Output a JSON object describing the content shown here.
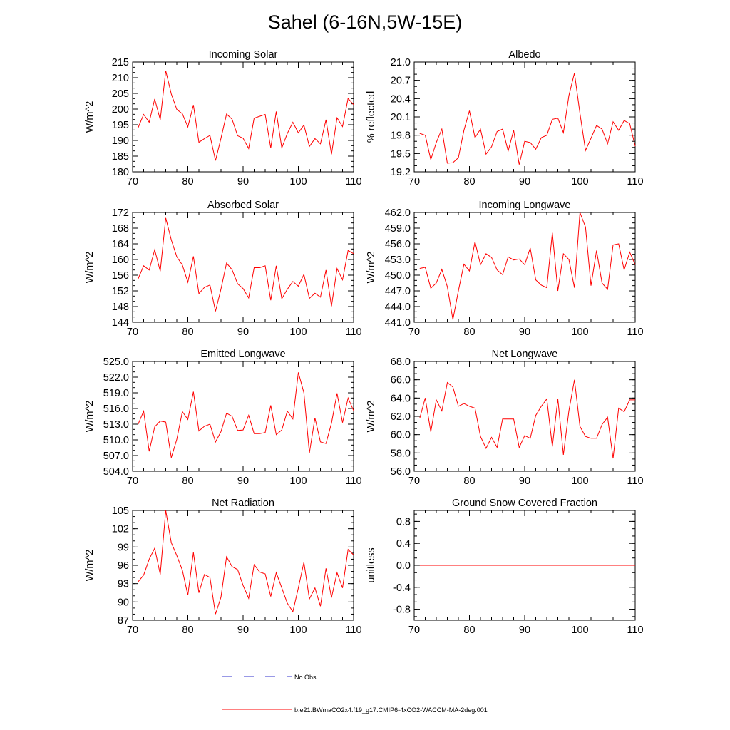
{
  "figure_title": "Sahel (6-16N,5W-15E)",
  "legend": {
    "items": [
      {
        "label": "No Obs",
        "color": "#3333cc",
        "style": "dashed"
      },
      {
        "label": "b.e21.BWmaCO2x4.f19_g17.CMIP6-4xCO2-WACCM-MA-2deg.001",
        "color": "#ff0000",
        "style": "solid"
      }
    ]
  },
  "chart_data": [
    {
      "type": "line",
      "title": "Incoming Solar",
      "ylabel": "W/m^2",
      "xlim": [
        70,
        110
      ],
      "ylim": [
        180,
        215
      ],
      "xticks": [
        "70",
        "80",
        "90",
        "100",
        "110"
      ],
      "yticks": [
        "180",
        "185",
        "190",
        "195",
        "200",
        "205",
        "210",
        "215"
      ],
      "x": [
        71,
        72,
        73,
        74,
        75,
        76,
        77,
        78,
        79,
        80,
        81,
        82,
        83,
        84,
        85,
        86,
        87,
        88,
        89,
        90,
        91,
        92,
        93,
        94,
        95,
        96,
        97,
        98,
        99,
        100,
        101,
        102,
        103,
        104,
        105,
        106,
        107,
        108,
        109,
        110
      ],
      "series": [
        {
          "color": "#ff0000",
          "values": [
            194.1,
            198.3,
            195.8,
            203.2,
            196.6,
            212.2,
            204.8,
            199.9,
            198.5,
            194.3,
            201.3,
            189.4,
            190.6,
            191.6,
            183.6,
            190.7,
            198.4,
            196.8,
            191.5,
            190.7,
            187.4,
            197.1,
            197.7,
            198.3,
            187.6,
            199.2,
            187.6,
            192.2,
            195.8,
            192.4,
            194.9,
            188.1,
            190.6,
            188.9,
            196.6,
            185.6,
            197.2,
            194.4,
            203.4,
            201.4
          ]
        }
      ]
    },
    {
      "type": "line",
      "title": "Albedo",
      "ylabel": "% reflected",
      "xlim": [
        70,
        110
      ],
      "ylim": [
        19.2,
        21.0
      ],
      "xticks": [
        "70",
        "80",
        "90",
        "100",
        "110"
      ],
      "yticks": [
        "19.2",
        "19.5",
        "19.8",
        "20.1",
        "20.4",
        "20.7",
        "21.0"
      ],
      "x": [
        71,
        72,
        73,
        74,
        75,
        76,
        77,
        78,
        79,
        80,
        81,
        82,
        83,
        84,
        85,
        86,
        87,
        88,
        89,
        90,
        91,
        92,
        93,
        94,
        95,
        96,
        97,
        98,
        99,
        100,
        101,
        102,
        103,
        104,
        105,
        106,
        107,
        108,
        109,
        110
      ],
      "series": [
        {
          "color": "#ff0000",
          "values": [
            19.83,
            19.8,
            19.4,
            19.68,
            19.9,
            19.34,
            19.35,
            19.43,
            19.88,
            20.2,
            19.76,
            19.9,
            19.49,
            19.61,
            19.86,
            19.9,
            19.54,
            19.88,
            19.32,
            19.7,
            19.68,
            19.57,
            19.76,
            19.8,
            20.06,
            20.08,
            19.84,
            20.45,
            20.82,
            20.16,
            19.55,
            19.75,
            19.96,
            19.9,
            19.66,
            20.02,
            19.88,
            20.04,
            19.99,
            19.62
          ]
        }
      ]
    },
    {
      "type": "line",
      "title": "Absorbed Solar",
      "ylabel": "W/m^2",
      "xlim": [
        70,
        110
      ],
      "ylim": [
        144,
        172
      ],
      "xticks": [
        "70",
        "80",
        "90",
        "100",
        "110"
      ],
      "yticks": [
        "144",
        "148",
        "152",
        "156",
        "160",
        "164",
        "168",
        "172"
      ],
      "x": [
        71,
        72,
        73,
        74,
        75,
        76,
        77,
        78,
        79,
        80,
        81,
        82,
        83,
        84,
        85,
        86,
        87,
        88,
        89,
        90,
        91,
        92,
        93,
        94,
        95,
        96,
        97,
        98,
        99,
        100,
        101,
        102,
        103,
        104,
        105,
        106,
        107,
        108,
        109,
        110
      ],
      "series": [
        {
          "color": "#ff0000",
          "values": [
            155.1,
            158.4,
            157.3,
            162.5,
            157.0,
            170.6,
            165.0,
            160.7,
            158.6,
            154.2,
            160.8,
            151.3,
            152.9,
            153.5,
            146.8,
            152.5,
            159.1,
            157.4,
            153.8,
            152.6,
            150.2,
            157.9,
            157.9,
            158.4,
            149.6,
            158.4,
            150.0,
            152.4,
            154.4,
            153.2,
            156.2,
            150.1,
            151.4,
            150.4,
            157.3,
            148.1,
            157.7,
            154.8,
            162.3,
            161.5
          ]
        }
      ]
    },
    {
      "type": "line",
      "title": "Incoming Longwave",
      "ylabel": "W/m^2",
      "xlim": [
        70,
        110
      ],
      "ylim": [
        441.0,
        462.0
      ],
      "xticks": [
        "70",
        "80",
        "90",
        "100",
        "110"
      ],
      "yticks": [
        "441.0",
        "444.0",
        "447.0",
        "450.0",
        "453.0",
        "456.0",
        "459.0",
        "462.0"
      ],
      "x": [
        71,
        72,
        73,
        74,
        75,
        76,
        77,
        78,
        79,
        80,
        81,
        82,
        83,
        84,
        85,
        86,
        87,
        88,
        89,
        90,
        91,
        92,
        93,
        94,
        95,
        96,
        97,
        98,
        99,
        100,
        101,
        102,
        103,
        104,
        105,
        106,
        107,
        108,
        109,
        110
      ],
      "series": [
        {
          "color": "#ff0000",
          "values": [
            451.3,
            451.5,
            447.5,
            448.5,
            451.1,
            447.8,
            441.5,
            447.0,
            452.1,
            450.8,
            456.4,
            452.0,
            454.1,
            453.4,
            451.0,
            450.1,
            453.5,
            452.9,
            453.1,
            452.0,
            455.2,
            449.1,
            448.1,
            447.6,
            458.1,
            447.0,
            454.1,
            453.0,
            447.6,
            462.0,
            459.2,
            448.0,
            454.7,
            448.5,
            447.3,
            455.8,
            456.0,
            451.0,
            454.4,
            452.0
          ]
        }
      ]
    },
    {
      "type": "line",
      "title": "Emitted Longwave",
      "ylabel": "W/m^2",
      "xlim": [
        70,
        110
      ],
      "ylim": [
        504.0,
        525.0
      ],
      "xticks": [
        "70",
        "80",
        "90",
        "100",
        "110"
      ],
      "yticks": [
        "504.0",
        "507.0",
        "510.0",
        "513.0",
        "516.0",
        "519.0",
        "522.0",
        "525.0"
      ],
      "x": [
        71,
        72,
        73,
        74,
        75,
        76,
        77,
        78,
        79,
        80,
        81,
        82,
        83,
        84,
        85,
        86,
        87,
        88,
        89,
        90,
        91,
        92,
        93,
        94,
        95,
        96,
        97,
        98,
        99,
        100,
        101,
        102,
        103,
        104,
        105,
        106,
        107,
        108,
        109,
        110
      ],
      "series": [
        {
          "color": "#ff0000",
          "values": [
            513.0,
            515.5,
            507.8,
            512.5,
            513.6,
            513.4,
            506.6,
            510.1,
            515.4,
            513.9,
            519.2,
            511.7,
            512.6,
            513.0,
            509.6,
            511.6,
            515.1,
            514.5,
            511.8,
            511.9,
            514.7,
            511.2,
            511.2,
            511.4,
            516.6,
            511.0,
            511.9,
            515.5,
            514.0,
            522.9,
            519.0,
            507.5,
            514.2,
            509.6,
            509.3,
            513.2,
            518.9,
            513.3,
            518.0,
            515.6
          ]
        }
      ]
    },
    {
      "type": "line",
      "title": "Net Longwave",
      "ylabel": "W/m^2",
      "xlim": [
        70,
        110
      ],
      "ylim": [
        56.0,
        68.0
      ],
      "xticks": [
        "70",
        "80",
        "90",
        "100",
        "110"
      ],
      "yticks": [
        "56.0",
        "58.0",
        "60.0",
        "62.0",
        "64.0",
        "66.0",
        "68.0"
      ],
      "x": [
        71,
        72,
        73,
        74,
        75,
        76,
        77,
        78,
        79,
        80,
        81,
        82,
        83,
        84,
        85,
        86,
        87,
        88,
        89,
        90,
        91,
        92,
        93,
        94,
        95,
        96,
        97,
        98,
        99,
        100,
        101,
        102,
        103,
        104,
        105,
        106,
        107,
        108,
        109,
        110
      ],
      "series": [
        {
          "color": "#ff0000",
          "values": [
            61.8,
            64.0,
            60.3,
            63.8,
            62.6,
            65.7,
            65.2,
            63.1,
            63.4,
            63.1,
            62.9,
            59.8,
            58.5,
            59.7,
            58.6,
            61.7,
            61.7,
            61.7,
            58.6,
            59.9,
            59.6,
            62.1,
            63.1,
            63.9,
            58.7,
            63.9,
            57.8,
            62.6,
            66.0,
            60.9,
            59.8,
            59.6,
            59.6,
            61.1,
            61.9,
            57.4,
            62.9,
            62.5,
            63.8,
            63.8
          ]
        }
      ]
    },
    {
      "type": "line",
      "title": "Net Radiation",
      "ylabel": "W/m^2",
      "xlim": [
        70,
        110
      ],
      "ylim": [
        87,
        105
      ],
      "xticks": [
        "70",
        "80",
        "90",
        "100",
        "110"
      ],
      "yticks": [
        "87",
        "90",
        "93",
        "96",
        "99",
        "102",
        "105"
      ],
      "x": [
        71,
        72,
        73,
        74,
        75,
        76,
        77,
        78,
        79,
        80,
        81,
        82,
        83,
        84,
        85,
        86,
        87,
        88,
        89,
        90,
        91,
        92,
        93,
        94,
        95,
        96,
        97,
        98,
        99,
        100,
        101,
        102,
        103,
        104,
        105,
        106,
        107,
        108,
        109,
        110
      ],
      "series": [
        {
          "color": "#ff0000",
          "values": [
            93.3,
            94.4,
            97.0,
            98.8,
            94.5,
            105.0,
            99.7,
            97.6,
            95.2,
            91.1,
            98.1,
            91.5,
            94.5,
            94.0,
            88.0,
            90.8,
            97.4,
            95.8,
            95.3,
            92.7,
            90.6,
            96.1,
            94.9,
            94.6,
            90.9,
            94.8,
            92.3,
            89.8,
            88.4,
            92.3,
            96.5,
            90.5,
            92.3,
            89.3,
            95.5,
            90.7,
            94.8,
            92.3,
            98.6,
            97.7
          ]
        }
      ]
    },
    {
      "type": "line",
      "title": "Ground Snow Covered Fraction",
      "ylabel": "unitless",
      "xlim": [
        70,
        110
      ],
      "ylim": [
        -1.0,
        1.0
      ],
      "xticks": [
        "70",
        "80",
        "90",
        "100",
        "110"
      ],
      "yticks": [
        "-0.8",
        "-0.4",
        "0.0",
        "0.4",
        "0.8"
      ],
      "x": [
        71,
        72,
        73,
        74,
        75,
        76,
        77,
        78,
        79,
        80,
        81,
        82,
        83,
        84,
        85,
        86,
        87,
        88,
        89,
        90,
        91,
        92,
        93,
        94,
        95,
        96,
        97,
        98,
        99,
        100,
        101,
        102,
        103,
        104,
        105,
        106,
        107,
        108,
        109,
        110
      ],
      "series": [
        {
          "color": "#ff0000",
          "values": [
            0,
            0,
            0,
            0,
            0,
            0,
            0,
            0,
            0,
            0,
            0,
            0,
            0,
            0,
            0,
            0,
            0,
            0,
            0,
            0,
            0,
            0,
            0,
            0,
            0,
            0,
            0,
            0,
            0,
            0,
            0,
            0,
            0,
            0,
            0,
            0,
            0,
            0,
            0,
            0
          ]
        }
      ]
    }
  ]
}
